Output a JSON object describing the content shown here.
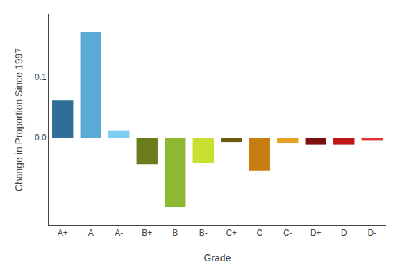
{
  "chart_data": {
    "type": "bar",
    "categories": [
      "A+",
      "A",
      "A-",
      "B+",
      "B",
      "B-",
      "C+",
      "C",
      "C-",
      "D+",
      "D",
      "D-"
    ],
    "values": [
      0.062,
      0.175,
      0.012,
      -0.044,
      -0.115,
      -0.042,
      -0.007,
      -0.055,
      -0.009,
      -0.011,
      -0.011,
      -0.005
    ],
    "colors": [
      "#2e6e98",
      "#5aaad8",
      "#7dcef2",
      "#6b7c1a",
      "#8db832",
      "#c8e030",
      "#6b5a0a",
      "#c87d10",
      "#e8a020",
      "#7a1010",
      "#c01515",
      "#e03030"
    ],
    "xlabel": "Grade",
    "ylabel": "Change in Proportion Since 1997",
    "ylim": [
      -0.145,
      0.205
    ],
    "yticks": [
      {
        "value": 0.0,
        "label": "0.0"
      },
      {
        "value": 0.1,
        "label": "0.1"
      }
    ],
    "grid": false
  }
}
